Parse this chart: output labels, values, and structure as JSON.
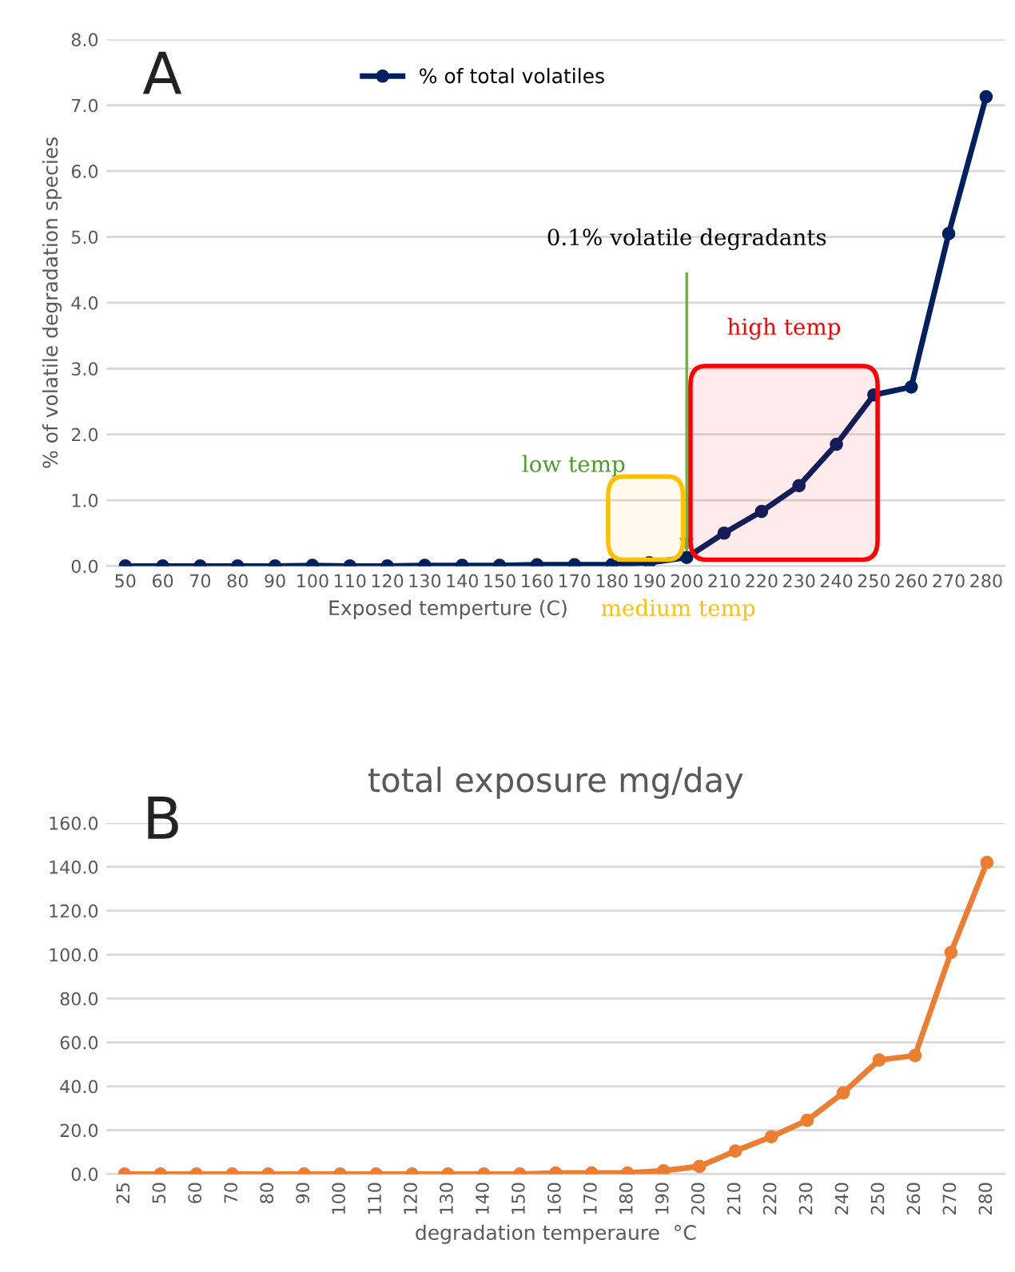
{
  "chart_data": [
    {
      "type": "line",
      "xlabel": "Exposed temperture (C)",
      "ylabel": "% of volatile degradation species",
      "categories": [
        "50",
        "60",
        "70",
        "80",
        "90",
        "100",
        "110",
        "120",
        "130",
        "140",
        "150",
        "160",
        "170",
        "180",
        "190",
        "200",
        "210",
        "220",
        "230",
        "240",
        "250",
        "260",
        "270",
        "280"
      ],
      "series": [
        {
          "name": "% of total volatiles",
          "color": "#002060",
          "values": [
            0.0,
            0.0,
            0.0,
            0.0,
            0.0,
            0.01,
            0.0,
            0.0,
            0.01,
            0.01,
            0.01,
            0.02,
            0.02,
            0.02,
            0.05,
            0.13,
            0.5,
            0.83,
            1.22,
            1.85,
            2.6,
            2.72,
            5.05,
            7.13
          ]
        }
      ],
      "ylim": [
        0,
        8
      ],
      "yticks": [
        {
          "value": 0,
          "label": "0.0"
        },
        {
          "value": 1,
          "label": "1.0"
        },
        {
          "value": 2,
          "label": "2.0"
        },
        {
          "value": 3,
          "label": "3.0"
        },
        {
          "value": 4,
          "label": "4.0"
        },
        {
          "value": 5,
          "label": "5.0"
        },
        {
          "value": 6,
          "label": "6.0"
        },
        {
          "value": 7,
          "label": "7.0"
        },
        {
          "value": 8,
          "label": "8.0"
        }
      ],
      "grid": "y",
      "legend": "top",
      "marker": "circle",
      "line_style": "solid",
      "ref_lines": [
        {
          "axis": "x",
          "value": "200",
          "label": "0.1% volatile degradants",
          "color": "#70ad47"
        }
      ],
      "bands": [
        {
          "axis": "x",
          "from": "180",
          "to": "200",
          "label": "medium temp",
          "color": "#ffc000"
        },
        {
          "axis": "x",
          "from": "200",
          "to": "250",
          "label": "high temp",
          "color": "#ff0000"
        }
      ],
      "annotations": [
        "A",
        "low temp"
      ]
    },
    {
      "type": "line",
      "title": "total exposure mg/day",
      "xlabel": "degradation temperaure  °C",
      "categories": [
        "25",
        "50",
        "60",
        "70",
        "80",
        "90",
        "100",
        "110",
        "120",
        "130",
        "140",
        "150",
        "160",
        "170",
        "180",
        "190",
        "200",
        "210",
        "220",
        "230",
        "240",
        "250",
        "260",
        "270",
        "280"
      ],
      "series": [
        {
          "color": "#ed7d31",
          "values": [
            0.0,
            0.0,
            0.0,
            0.0,
            0.0,
            0.0,
            0.0,
            0.0,
            0.0,
            0.0,
            0.0,
            0.0,
            0.5,
            0.5,
            0.5,
            1.5,
            3.5,
            10.5,
            17,
            24.5,
            37,
            52,
            54,
            101,
            142
          ]
        }
      ],
      "ylim": [
        0,
        160
      ],
      "yticks": [
        {
          "value": 0,
          "label": "0.0"
        },
        {
          "value": 20,
          "label": "20.0"
        },
        {
          "value": 40,
          "label": "40.0"
        },
        {
          "value": 60,
          "label": "60.0"
        },
        {
          "value": 80,
          "label": "80.0"
        },
        {
          "value": 100,
          "label": "100.0"
        },
        {
          "value": 120,
          "label": "120.0"
        },
        {
          "value": 140,
          "label": "140.0"
        },
        {
          "value": 160,
          "label": "160.0"
        }
      ],
      "grid": "y",
      "marker": "circle",
      "line_style": "solid",
      "annotations": [
        "B"
      ]
    }
  ]
}
